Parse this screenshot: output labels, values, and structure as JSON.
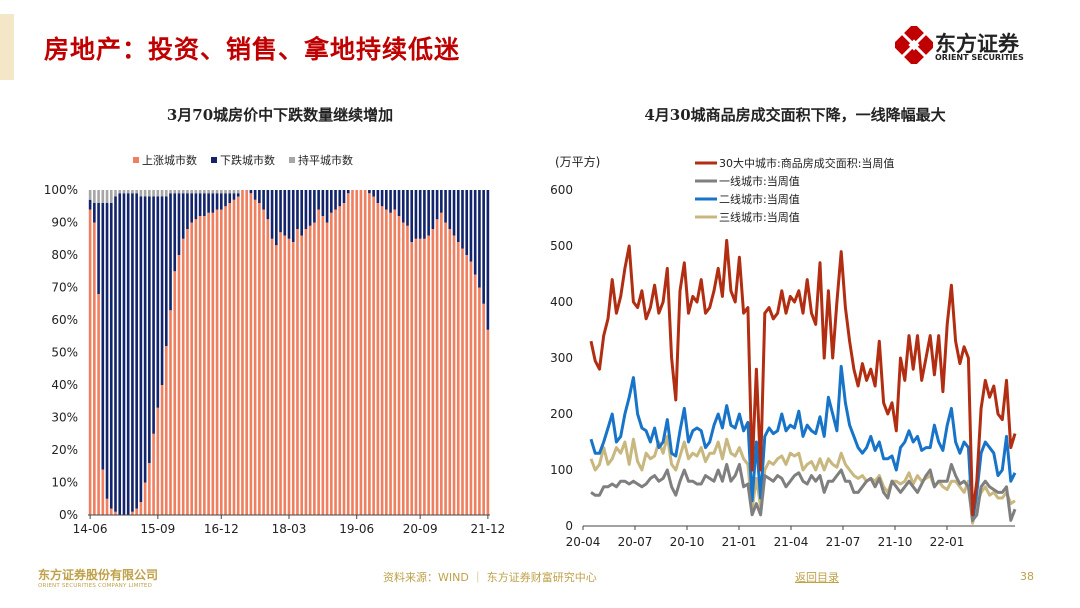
{
  "header": {
    "title": "房地产：投资、销售、拿地持续低迷",
    "logo_name": "东方证券",
    "logo_sub": "ORIENT SECURITIES",
    "brand_color": "#c00000"
  },
  "chart_data": [
    {
      "type": "bar",
      "stacked": true,
      "title": "3月70城房价中下跌数量继续增加",
      "legend_position": "top",
      "yticks": [
        "0%",
        "10%",
        "20%",
        "30%",
        "40%",
        "50%",
        "60%",
        "70%",
        "80%",
        "90%",
        "100%"
      ],
      "xticks": [
        "14-06",
        "15-09",
        "16-12",
        "18-03",
        "19-06",
        "20-09",
        "21-12"
      ],
      "ylim": [
        0,
        100
      ],
      "series": [
        {
          "name": "上涨城市数",
          "color": "#ef7f5f",
          "values": [
            94,
            90,
            68,
            14,
            5,
            2,
            1,
            0,
            0,
            0,
            1,
            2,
            4,
            10,
            16,
            25,
            33,
            40,
            52,
            63,
            75,
            80,
            85,
            88,
            90,
            91,
            92,
            92,
            93,
            93,
            94,
            94,
            95,
            96,
            97,
            98,
            100,
            100,
            99,
            97,
            96,
            94,
            91,
            85,
            83,
            87,
            86,
            85,
            84,
            88,
            86,
            88,
            89,
            90,
            94,
            92,
            90,
            93,
            94,
            95,
            96,
            99,
            100,
            100,
            100,
            100,
            99,
            98,
            96,
            95,
            94,
            93,
            94,
            92,
            90,
            89,
            84,
            85,
            85,
            85,
            86,
            88,
            91,
            93,
            90,
            88,
            86,
            84,
            82,
            80,
            78,
            74,
            70,
            65,
            57
          ]
        },
        {
          "name": "下跌城市数",
          "color": "#12246b",
          "values": [
            3,
            6,
            28,
            82,
            91,
            94,
            97,
            99,
            99,
            99,
            98,
            97,
            94,
            88,
            82,
            73,
            65,
            58,
            46,
            36,
            24,
            19,
            14,
            11,
            9,
            8,
            7,
            7,
            6,
            6,
            5,
            5,
            4,
            3,
            2,
            1,
            0,
            0,
            1,
            3,
            4,
            6,
            9,
            15,
            17,
            13,
            14,
            15,
            16,
            12,
            14,
            12,
            11,
            10,
            6,
            8,
            10,
            7,
            6,
            5,
            4,
            1,
            0,
            0,
            0,
            0,
            1,
            2,
            4,
            5,
            6,
            7,
            6,
            8,
            10,
            11,
            16,
            15,
            15,
            15,
            14,
            12,
            9,
            7,
            10,
            12,
            14,
            16,
            18,
            20,
            22,
            26,
            30,
            35,
            43
          ]
        },
        {
          "name": "持平城市数",
          "color": "#a6a6a6",
          "values": [
            3,
            4,
            4,
            4,
            4,
            4,
            2,
            1,
            1,
            1,
            1,
            1,
            2,
            2,
            2,
            2,
            2,
            2,
            2,
            1,
            1,
            1,
            1,
            1,
            1,
            1,
            1,
            1,
            1,
            1,
            1,
            1,
            1,
            1,
            1,
            1,
            0,
            0,
            0,
            0,
            0,
            0,
            0,
            0,
            0,
            0,
            0,
            0,
            0,
            0,
            0,
            0,
            0,
            0,
            0,
            0,
            0,
            0,
            0,
            0,
            0,
            0,
            0,
            0,
            0,
            0,
            0,
            0,
            0,
            0,
            0,
            0,
            0,
            0,
            0,
            0,
            0,
            0,
            0,
            0,
            0,
            0,
            0,
            0,
            0,
            0,
            0,
            0,
            0,
            0,
            0,
            0,
            0,
            0,
            0
          ]
        }
      ]
    },
    {
      "type": "line",
      "title": "4月30城商品房成交面积下降，一线降幅最大",
      "unit_label": "(万平方)",
      "ylim": [
        0,
        600
      ],
      "yticks": [
        "0",
        "100",
        "200",
        "300",
        "400",
        "500",
        "600"
      ],
      "xticks": [
        "20-04",
        "20-07",
        "20-10",
        "21-01",
        "21-04",
        "21-07",
        "21-10",
        "22-01"
      ],
      "legend_position": "top",
      "series": [
        {
          "name": "30大中城市:商品房成交面积:当周值",
          "color": "#b22e12",
          "values": [
            330,
            295,
            280,
            340,
            370,
            440,
            380,
            410,
            460,
            500,
            400,
            390,
            420,
            370,
            390,
            430,
            380,
            400,
            460,
            300,
            225,
            420,
            470,
            380,
            410,
            400,
            440,
            380,
            390,
            420,
            460,
            410,
            510,
            420,
            400,
            480,
            380,
            390,
            100,
            280,
            100,
            380,
            390,
            370,
            380,
            420,
            380,
            410,
            400,
            420,
            380,
            440,
            380,
            360,
            470,
            300,
            420,
            300,
            400,
            490,
            390,
            330,
            280,
            250,
            290,
            260,
            280,
            250,
            330,
            220,
            200,
            220,
            170,
            300,
            260,
            340,
            280,
            340,
            260,
            300,
            340,
            270,
            340,
            240,
            360,
            430,
            330,
            290,
            320,
            300,
            20,
            80,
            210,
            260,
            230,
            250,
            200,
            190,
            260,
            140,
            165
          ]
        },
        {
          "name": "一线城市:当周值",
          "color": "#7f7f7f",
          "values": [
            60,
            55,
            55,
            70,
            70,
            75,
            70,
            80,
            80,
            75,
            80,
            75,
            70,
            75,
            85,
            90,
            80,
            85,
            100,
            70,
            55,
            80,
            100,
            80,
            80,
            75,
            75,
            90,
            85,
            80,
            100,
            80,
            110,
            80,
            90,
            110,
            70,
            75,
            20,
            40,
            20,
            90,
            85,
            80,
            90,
            85,
            70,
            80,
            90,
            95,
            80,
            75,
            90,
            80,
            90,
            60,
            80,
            80,
            90,
            100,
            80,
            80,
            60,
            60,
            70,
            80,
            85,
            70,
            85,
            60,
            50,
            80,
            70,
            60,
            70,
            80,
            70,
            60,
            75,
            90,
            100,
            70,
            80,
            80,
            80,
            110,
            90,
            75,
            80,
            70,
            10,
            20,
            70,
            80,
            70,
            65,
            60,
            60,
            70,
            10,
            30
          ]
        },
        {
          "name": "二线城市:当周值",
          "color": "#1874c8",
          "values": [
            155,
            130,
            130,
            150,
            175,
            200,
            150,
            160,
            200,
            230,
            265,
            200,
            175,
            170,
            150,
            175,
            140,
            150,
            190,
            130,
            125,
            170,
            210,
            150,
            170,
            175,
            170,
            140,
            150,
            180,
            200,
            175,
            215,
            180,
            175,
            200,
            170,
            185,
            45,
            150,
            50,
            160,
            175,
            165,
            170,
            200,
            170,
            180,
            175,
            205,
            160,
            180,
            170,
            165,
            195,
            160,
            230,
            200,
            170,
            285,
            220,
            180,
            160,
            140,
            130,
            140,
            160,
            135,
            150,
            120,
            120,
            125,
            100,
            140,
            150,
            170,
            150,
            160,
            135,
            140,
            140,
            180,
            150,
            135,
            180,
            210,
            150,
            130,
            150,
            140,
            10,
            60,
            130,
            150,
            140,
            130,
            90,
            100,
            160,
            80,
            95
          ]
        },
        {
          "name": "三线城市:当周值",
          "color": "#c9b780",
          "values": [
            120,
            100,
            110,
            140,
            110,
            120,
            140,
            130,
            150,
            110,
            155,
            115,
            100,
            130,
            120,
            125,
            150,
            130,
            160,
            110,
            100,
            125,
            150,
            120,
            130,
            125,
            140,
            115,
            130,
            130,
            150,
            120,
            155,
            130,
            125,
            140,
            120,
            110,
            30,
            85,
            35,
            100,
            115,
            110,
            120,
            125,
            110,
            130,
            125,
            130,
            100,
            110,
            115,
            100,
            120,
            100,
            120,
            110,
            105,
            130,
            110,
            100,
            90,
            85,
            90,
            80,
            85,
            80,
            90,
            70,
            60,
            80,
            80,
            75,
            80,
            95,
            75,
            90,
            80,
            85,
            90,
            70,
            80,
            70,
            65,
            80,
            80,
            70,
            60,
            80,
            5,
            40,
            60,
            70,
            55,
            60,
            50,
            50,
            60,
            40,
            45
          ]
        }
      ]
    }
  ],
  "footer": {
    "company_cn": "东方证券股份有限公司",
    "company_en": "ORIENT SECURITIES COMPANY LIMITED",
    "source": "资料来源：WIND ｜ 东方证券财富研究中心",
    "back_link": "返回目录",
    "page_number": "38",
    "footer_color": "#bfa14a"
  }
}
